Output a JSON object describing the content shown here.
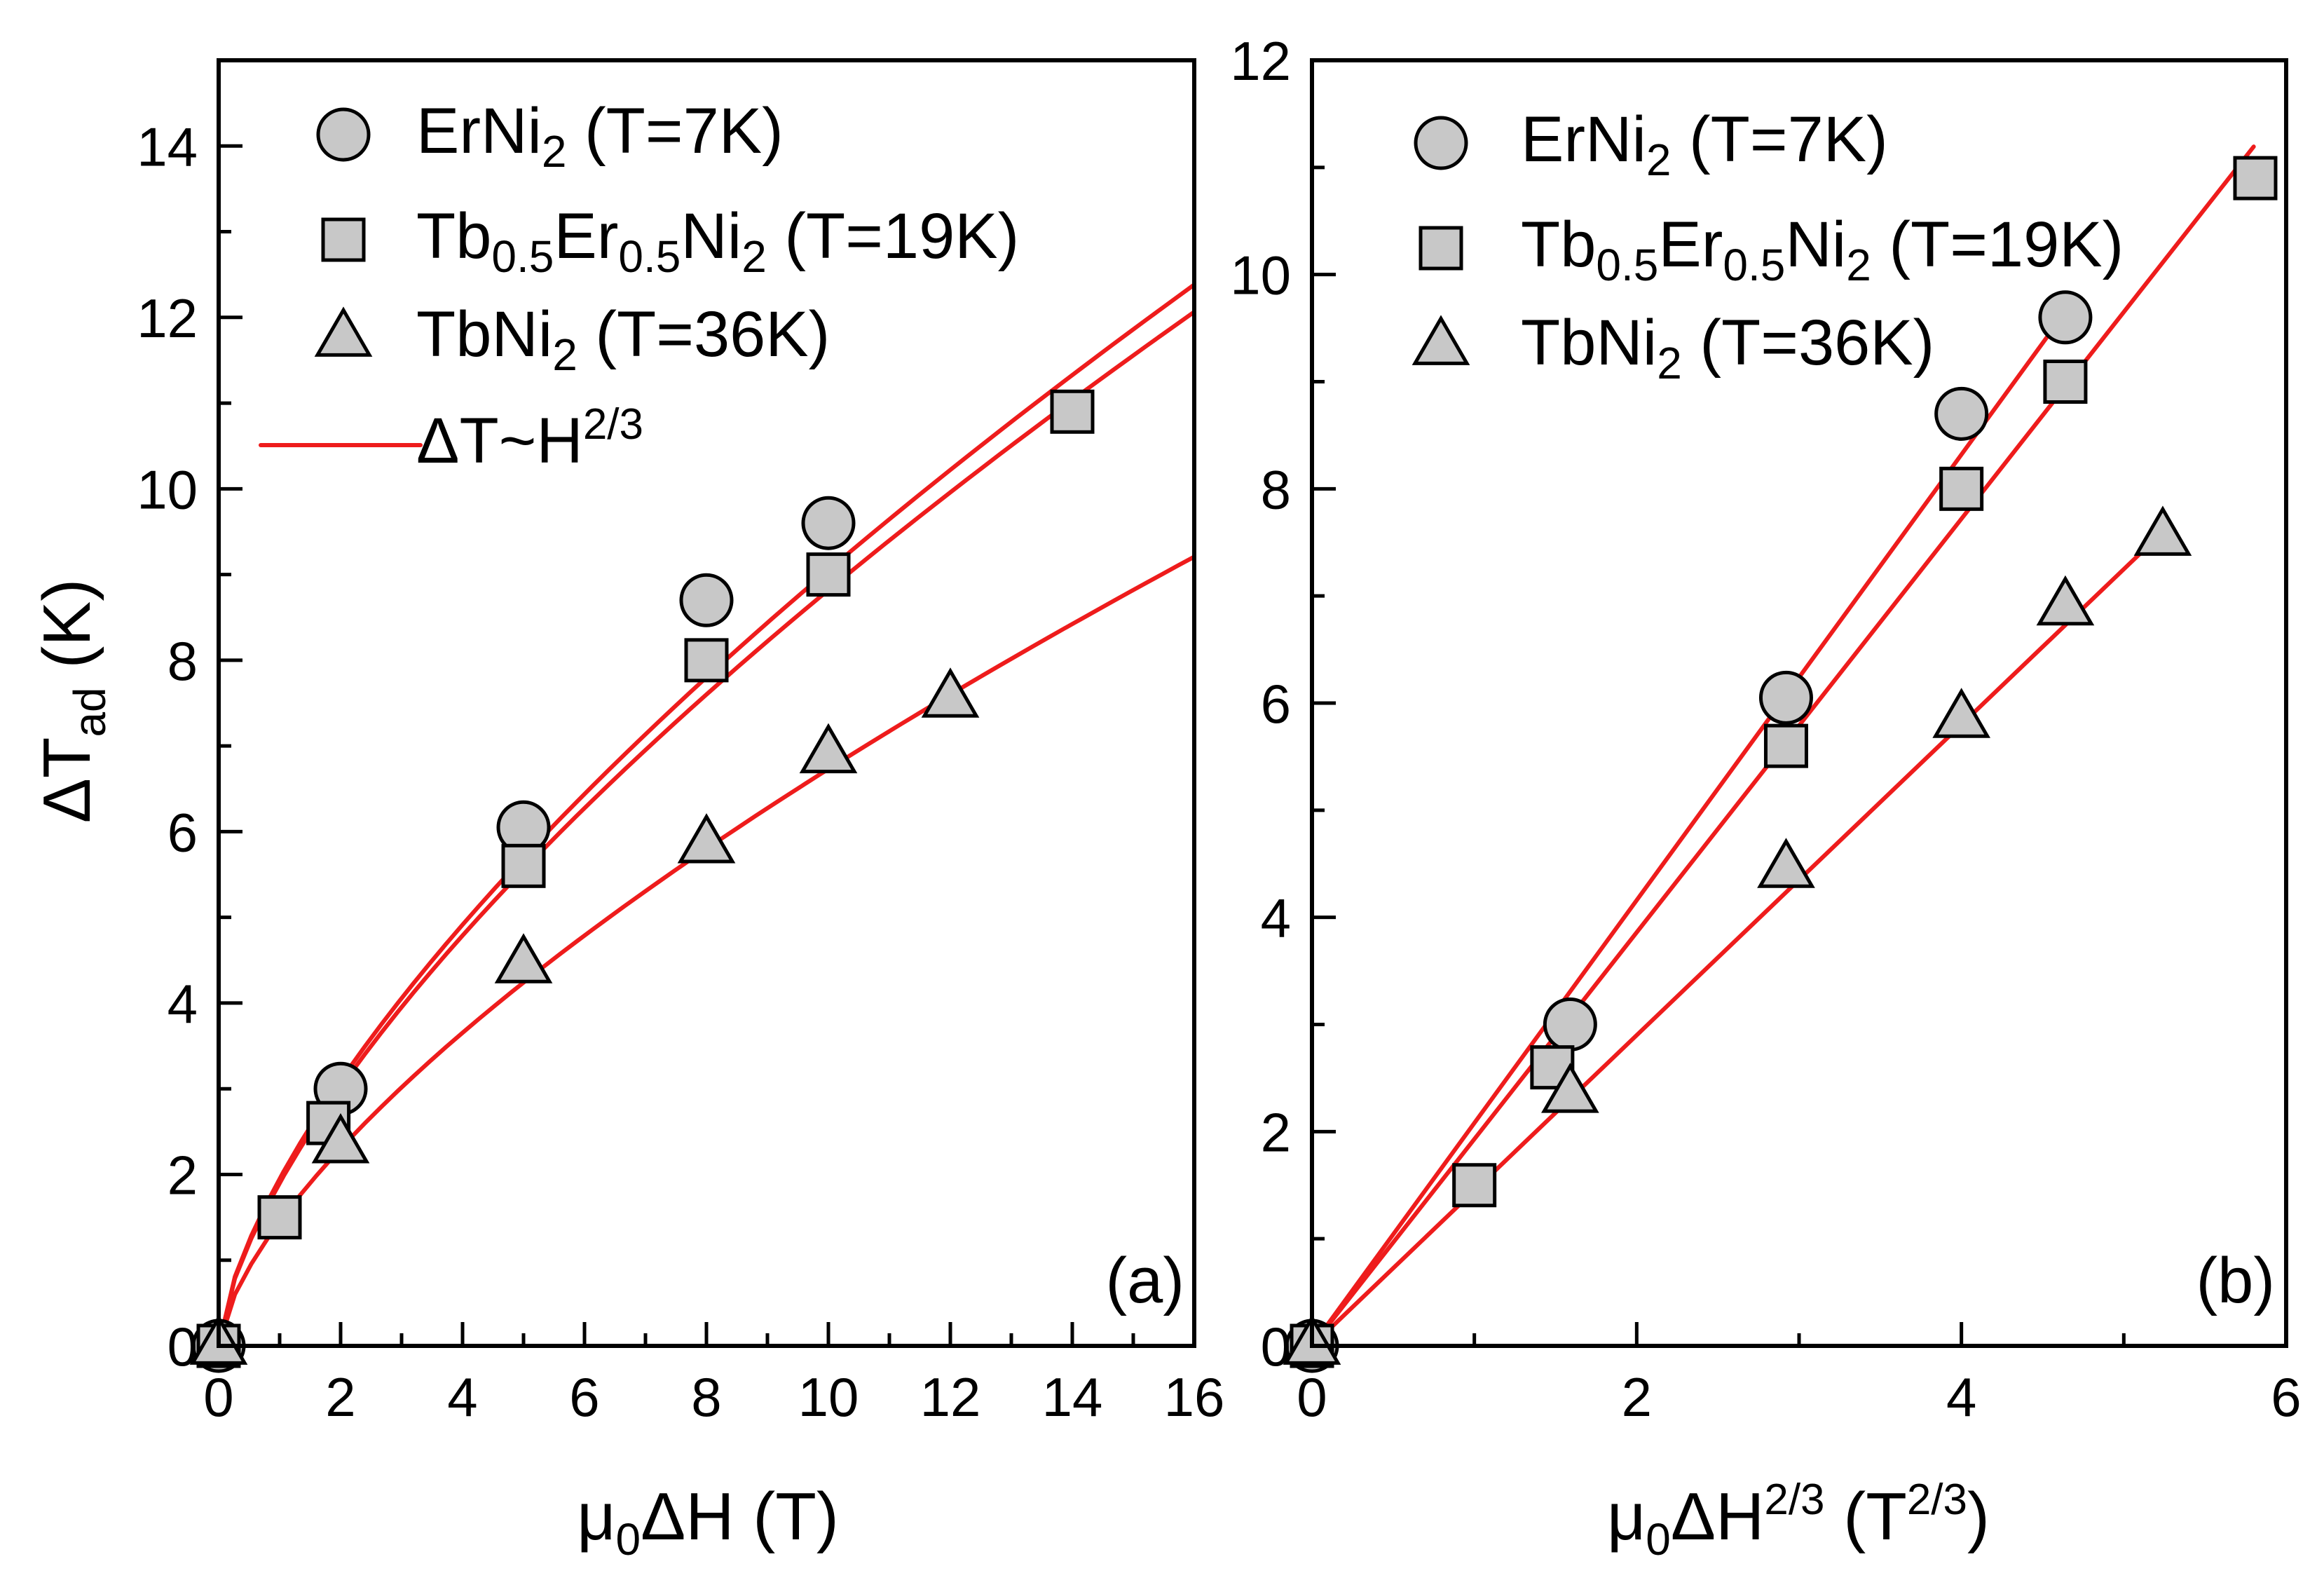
{
  "colors": {
    "fit_line": "#ee1c1c",
    "marker_fill": "#c8c8c8",
    "marker_edge": "#000000",
    "axes": "#000000",
    "background": "#ffffff"
  },
  "legend": {
    "items": [
      {
        "marker": "circle",
        "base": "ErNi",
        "sub1": "2",
        "mid": "",
        "sub2": "",
        "tail": "",
        "sub3": "",
        "suffix": " (T=7K)"
      },
      {
        "marker": "square",
        "base": "Tb",
        "sub1": "0.5",
        "mid": "Er",
        "sub2": "0.5",
        "tail": "Ni",
        "sub3": "2",
        "suffix": " (T=19K)"
      },
      {
        "marker": "triangle",
        "base": "TbNi",
        "sub1": "2",
        "mid": "",
        "sub2": "",
        "tail": "",
        "sub3": "",
        "suffix": " (T=36K)"
      }
    ],
    "fit": {
      "prefix": "ΔT~H",
      "sup": "2/3"
    }
  },
  "chart_data": [
    {
      "id": "a",
      "type": "scatter",
      "panel_label": "(a)",
      "xlabel": {
        "mu": "μ",
        "sub": "0",
        "rest": "ΔH (T)"
      },
      "ylabel": {
        "main": "ΔT",
        "sub": "ad",
        "rest": " (K)"
      },
      "xlim": [
        0,
        16
      ],
      "ylim": [
        0,
        15
      ],
      "xticks": [
        0,
        2,
        4,
        6,
        8,
        10,
        12,
        14,
        16
      ],
      "yticks": [
        0,
        2,
        4,
        6,
        8,
        10,
        12,
        14
      ],
      "x_minor_step": 1,
      "y_minor_step": 1,
      "grid": false,
      "legend_position": "top-left",
      "series": [
        {
          "name": "ErNi2 (T=7K)",
          "marker": "circle",
          "x": [
            0,
            2,
            5,
            8,
            10
          ],
          "y": [
            0,
            3.0,
            6.05,
            8.7,
            9.6
          ],
          "fit_coef": 1.9
        },
        {
          "name": "Tb0.5Er0.5Ni2 (T=19K)",
          "marker": "square",
          "x": [
            0,
            1,
            1.8,
            5,
            8,
            10,
            14
          ],
          "y": [
            0,
            1.5,
            2.6,
            5.6,
            8.0,
            9.0,
            10.9
          ],
          "fit_coef": 1.95
        },
        {
          "name": "TbNi2 (T=36K)",
          "marker": "triangle",
          "x": [
            0,
            2,
            5,
            8,
            10,
            12
          ],
          "y": [
            0,
            2.35,
            4.45,
            5.85,
            6.9,
            7.55
          ],
          "fit_coef": 1.45
        }
      ]
    },
    {
      "id": "b",
      "type": "scatter",
      "panel_label": "(b)",
      "xlabel": {
        "mu": "μ",
        "sub": "0",
        "rest": "ΔH",
        "sup": "2/3",
        "unit_open": " (T",
        "unit_sup": "2/3",
        "unit_close": ")"
      },
      "ylabel": null,
      "xlim": [
        0,
        6
      ],
      "ylim": [
        0,
        12
      ],
      "xticks": [
        0,
        2,
        4,
        6
      ],
      "yticks": [
        0,
        2,
        4,
        6,
        8,
        10,
        12
      ],
      "x_minor_step": 1,
      "y_minor_step": 1,
      "grid": false,
      "legend_position": "top-left",
      "series": [
        {
          "name": "ErNi2 (T=7K)",
          "marker": "circle",
          "x": [
            0,
            1.59,
            2.92,
            4.0,
            4.64
          ],
          "y": [
            0,
            3.0,
            6.05,
            8.7,
            9.6
          ],
          "fit_coef": 2.08,
          "fit_xmax": 4.7
        },
        {
          "name": "Tb0.5Er0.5Ni2 (T=19K)",
          "marker": "square",
          "x": [
            0,
            1.0,
            1.48,
            2.92,
            4.0,
            4.64,
            5.81
          ],
          "y": [
            0,
            1.5,
            2.6,
            5.6,
            8.0,
            9.0,
            10.9
          ],
          "fit_coef": 1.93,
          "fit_xmax": 5.8
        },
        {
          "name": "TbNi2 (T=36K)",
          "marker": "triangle",
          "x": [
            0,
            1.59,
            2.92,
            4.0,
            4.64,
            5.24
          ],
          "y": [
            0,
            2.35,
            4.45,
            5.85,
            6.9,
            7.55
          ],
          "fit_coef": 1.45,
          "fit_xmax": 5.24
        }
      ]
    }
  ]
}
